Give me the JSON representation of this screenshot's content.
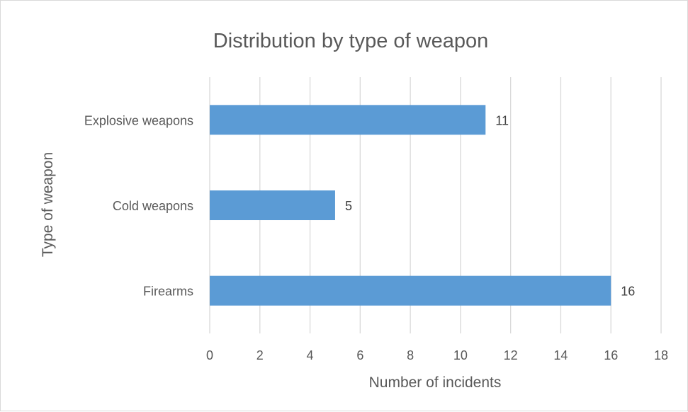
{
  "chart_data": {
    "type": "bar",
    "orientation": "horizontal",
    "title": "Distribution by type of weapon",
    "xlabel": "Number of incidents",
    "ylabel": "Type of weapon",
    "categories": [
      "Firearms",
      "Cold weapons",
      "Explosive weapons"
    ],
    "values": [
      16,
      5,
      11
    ],
    "data_labels": [
      "16",
      "5",
      "11"
    ],
    "xlim": [
      0,
      18
    ],
    "x_ticks": [
      "0",
      "2",
      "4",
      "6",
      "8",
      "10",
      "12",
      "14",
      "16",
      "18"
    ],
    "grid": "vertical",
    "legend": "none",
    "bar_color": "#5b9bd5"
  }
}
